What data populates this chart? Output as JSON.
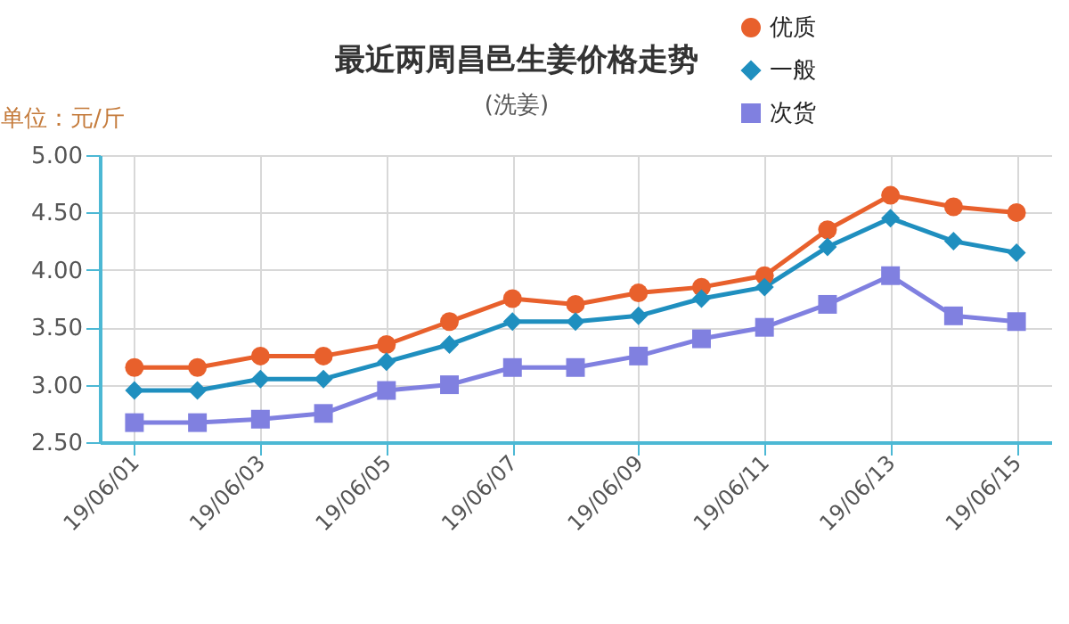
{
  "chart_data": {
    "type": "line",
    "title": "最近两周昌邑生姜价格走势",
    "subtitle": "(洗姜)",
    "ylabel": "单位：元/斤",
    "categories": [
      "19/06/01",
      null,
      "19/06/03",
      null,
      "19/06/05",
      null,
      "19/06/07",
      null,
      "19/06/09",
      null,
      "19/06/11",
      null,
      "19/06/13",
      null,
      "19/06/15"
    ],
    "series": [
      {
        "name": "优质",
        "color": "#e8602c",
        "marker": "circle",
        "values": [
          3.15,
          3.15,
          3.25,
          3.25,
          3.35,
          3.55,
          3.75,
          3.7,
          3.8,
          3.85,
          3.95,
          4.35,
          4.65,
          4.55,
          4.5
        ]
      },
      {
        "name": "一般",
        "color": "#1f8fbf",
        "marker": "diamond",
        "values": [
          2.95,
          2.95,
          3.05,
          3.05,
          3.2,
          3.35,
          3.55,
          3.55,
          3.6,
          3.75,
          3.85,
          4.2,
          4.45,
          4.25,
          4.15
        ]
      },
      {
        "name": "次货",
        "color": "#8080e0",
        "marker": "square",
        "values": [
          2.67,
          2.67,
          2.7,
          2.75,
          2.95,
          3.0,
          3.15,
          3.15,
          3.25,
          3.4,
          3.5,
          3.7,
          3.95,
          3.6,
          3.55
        ]
      }
    ],
    "ylim": [
      2.5,
      5.0
    ],
    "yticks": [
      {
        "value": 2.5,
        "label": "2.50"
      },
      {
        "value": 3.0,
        "label": "3.00"
      },
      {
        "value": 3.5,
        "label": "3.50"
      },
      {
        "value": 4.0,
        "label": "4.00"
      },
      {
        "value": 4.5,
        "label": "4.50"
      },
      {
        "value": 5.0,
        "label": "5.00"
      }
    ],
    "grid": true,
    "legend": "top right"
  }
}
